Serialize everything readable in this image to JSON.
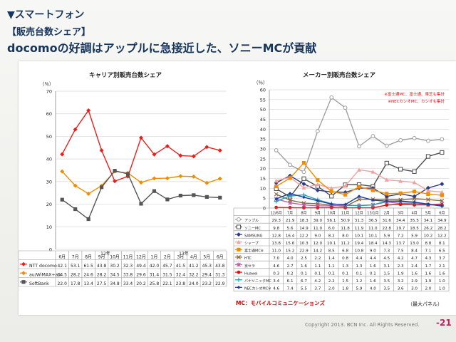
{
  "header": {
    "section": "▼スマートフォン",
    "subtitle": "【販売台数シェア】",
    "headline": "docomoの好調はアップルに急接近した、ソニーMCが貢献"
  },
  "footer": {
    "copyright": "Copyright 2013. BCN Inc. All Rights Reserved.",
    "page": "-21"
  },
  "notes": {
    "mc_prefix": "MC",
    "mc_text": "：モバイルコミュニケーションズ",
    "big_panel": "（最大パネル）"
  },
  "colors": {
    "docomo": "#e8201c",
    "au": "#f08c00",
    "softbank": "#555555",
    "apple": "#a0a0a0",
    "sony": "#4d4d4d",
    "samsung": "#2e3a87",
    "sharp": "#f4a0a0",
    "fujitsu": "#f08c00",
    "htc": "#8c6a3c",
    "kyocera": "#c060a0",
    "huawei": "#e01010",
    "panasonic": "#1fa0b8",
    "nec": "#1f3fa0"
  },
  "chart_data": [
    {
      "type": "line",
      "title": "キャリア別販売台数シェア",
      "ylabel": "（％）",
      "ylim": [
        0,
        70
      ],
      "yticks": [
        0,
        10,
        20,
        30,
        40,
        50,
        60,
        70
      ],
      "categories": [
        "6月",
        "7月",
        "8月",
        "9月",
        "10月",
        "11月",
        "12月",
        "1月",
        "2月",
        "3月",
        "4月",
        "5月",
        "6月"
      ],
      "year_labels": [
        "12年",
        "13年"
      ],
      "grid": true,
      "legend": "table-below",
      "series": [
        {
          "name": "NTT docomo",
          "color_key": "docomo",
          "marker": "diamond",
          "values": [
            42.1,
            53.1,
            61.5,
            43.8,
            30.2,
            32.3,
            49.4,
            42.0,
            45.7,
            41.5,
            41.2,
            45.3,
            43.8
          ],
          "labels": [
            "42.1",
            "53.1",
            "61.5",
            "43.8",
            "30.2",
            "32.3",
            "49.4",
            "42.0",
            "45.7",
            "41.5",
            "41.2",
            "45.3",
            "43.8"
          ]
        },
        {
          "name": "au/WiMAX+au",
          "color_key": "au",
          "marker": "diamond",
          "values": [
            34.5,
            28.2,
            24.6,
            28.2,
            34.5,
            33.8,
            29.6,
            31.4,
            31.5,
            32.4,
            32.2,
            29.4,
            31.3
          ],
          "labels": [
            "34.5",
            "28.2",
            "24.6",
            "28.2",
            "34.5",
            "33.8",
            "29.6",
            "31.4",
            "31.5",
            "32.4",
            "32.2",
            "29.4",
            "31.3"
          ]
        },
        {
          "name": "SoftBank",
          "color_key": "softbank",
          "marker": "square",
          "values": [
            22.0,
            17.8,
            13.4,
            27.5,
            34.8,
            33.4,
            20.2,
            25.8,
            22.1,
            23.8,
            24.0,
            23.2,
            22.9
          ],
          "labels": [
            "22.0",
            "17.8",
            "13.4",
            "27.5",
            "34.8",
            "33.4",
            "20.2",
            "25.8",
            "22.1",
            "23.8",
            "24.0",
            "23.2",
            "22.9"
          ]
        }
      ]
    },
    {
      "type": "line",
      "title": "メーカー別販売台数シェア",
      "ylabel": "（％）",
      "ylim": [
        0,
        60
      ],
      "yticks": [
        0,
        5,
        10,
        15,
        20,
        25,
        30,
        35,
        40,
        45,
        50,
        55,
        60
      ],
      "categories": [
        "12/6月",
        "7月",
        "8月",
        "9月",
        "10月",
        "11月",
        "12月",
        "13/1月",
        "2月",
        "3月",
        "4月",
        "5月",
        "6月"
      ],
      "grid": true,
      "legend": "table-below",
      "annotations": [
        "※富士通MC、富士通、東芝も集計",
        "※NECカシオMC、カシオも集計"
      ],
      "series": [
        {
          "name": "アップル",
          "color_key": "apple",
          "marker": "circle-open",
          "values": [
            29.3,
            21.9,
            18.3,
            39.0,
            56.1,
            50.9,
            31.3,
            36.5,
            31.6,
            34.4,
            35.5,
            34.1,
            34.9
          ],
          "labels": [
            "29.3",
            "21.9",
            "18.3",
            "39.0",
            "56.1",
            "50.9",
            "31.3",
            "36.5",
            "31.6",
            "34.4",
            "35.5",
            "34.1",
            "34.9"
          ]
        },
        {
          "name": "ソニーMC",
          "color_key": "sony",
          "marker": "square-open",
          "values": [
            9.8,
            5.6,
            14.9,
            11.0,
            6.0,
            11.8,
            11.9,
            11.0,
            22.8,
            19.7,
            18.5,
            26.2,
            28.2
          ],
          "labels": [
            "9.8",
            "5.6",
            "14.9",
            "11.0",
            "6.0",
            "11.8",
            "11.9",
            "11.0",
            "22.8",
            "19.7",
            "18.5",
            "26.2",
            "28.2"
          ]
        },
        {
          "name": "SAMSUNG",
          "color_key": "samsung",
          "marker": "diamond",
          "values": [
            12.8,
            16.4,
            12.2,
            9.0,
            8.2,
            8.0,
            10.1,
            10.1,
            5.9,
            7.2,
            5.9,
            10.2,
            12.2
          ],
          "labels": [
            "12.8",
            "16.4",
            "12.2",
            "9.0",
            "8.2",
            "8.0",
            "10.1",
            "10.1",
            "5.9",
            "7.2",
            "5.9",
            "10.2",
            "12.2"
          ]
        },
        {
          "name": "シャープ",
          "color_key": "sharp",
          "marker": "triangle",
          "values": [
            13.8,
            15.6,
            10.3,
            12.0,
            10.1,
            11.2,
            19.4,
            18.4,
            14.3,
            13.7,
            13.0,
            8.8,
            8.1
          ],
          "labels": [
            "13.8",
            "15.6",
            "10.3",
            "12.0",
            "10.1",
            "11.2",
            "19.4",
            "18.4",
            "14.3",
            "13.7",
            "13.0",
            "8.8",
            "8.1"
          ]
        },
        {
          "name": "富士通MC※",
          "color_key": "fujitsu",
          "marker": "square",
          "values": [
            11.0,
            15.2,
            22.9,
            14.2,
            8.5,
            6.8,
            10.8,
            9.0,
            7.3,
            7.5,
            8.4,
            7.1,
            6.5
          ],
          "labels": [
            "11.0",
            "15.2",
            "22.9",
            "14.2",
            "8.5",
            "6.8",
            "10.8",
            "9.0",
            "7.3",
            "7.5",
            "8.4",
            "7.1",
            "6.5"
          ]
        },
        {
          "name": "HTC",
          "color_key": "htc",
          "marker": "x",
          "values": [
            7.0,
            4.0,
            2.5,
            2.2,
            1.4,
            0.8,
            4.4,
            4.4,
            4.5,
            4.2,
            4.7,
            4.3,
            3.7
          ],
          "labels": [
            "7.0",
            "4.0",
            "2.5",
            "2.2",
            "1.4",
            "0.8",
            "4.4",
            "4.4",
            "4.5",
            "4.2",
            "4.7",
            "4.3",
            "3.7"
          ]
        },
        {
          "name": "京セラ",
          "color_key": "kyocera",
          "marker": "star",
          "values": [
            4.6,
            2.7,
            1.6,
            1.1,
            1.1,
            1.3,
            1.3,
            1.6,
            3.1,
            2.3,
            2.4,
            1.7,
            2.1
          ],
          "labels": [
            "4.6",
            "2.7",
            "1.6",
            "1.1",
            "1.1",
            "1.3",
            "1.3",
            "1.6",
            "3.1",
            "2.3",
            "2.4",
            "1.7",
            "2.1"
          ]
        },
        {
          "name": "Huawei",
          "color_key": "huawei",
          "marker": "circle",
          "values": [
            0.3,
            0.2,
            0.1,
            0.1,
            0.2,
            0.1,
            0.1,
            0.1,
            1.5,
            1.9,
            1.6,
            1.6,
            1.6
          ],
          "labels": [
            "0.3",
            "0.2",
            "0.1",
            "0.1",
            "0.2",
            "0.1",
            "0.1",
            "0.1",
            "1.5",
            "1.9",
            "1.6",
            "1.6",
            "1.6"
          ]
        },
        {
          "name": "パナソニックMC",
          "color_key": "panasonic",
          "marker": "plus",
          "values": [
            3.4,
            6.1,
            6.7,
            4.2,
            2.2,
            1.5,
            1.2,
            1.6,
            3.5,
            3.2,
            2.9,
            1.9,
            1.0
          ],
          "labels": [
            "3.4",
            "6.1",
            "6.7",
            "4.2",
            "2.2",
            "1.5",
            "1.2",
            "1.6",
            "3.5",
            "3.2",
            "2.9",
            "1.9",
            "1.0"
          ]
        },
        {
          "name": "NECカシオMC※",
          "color_key": "nec",
          "marker": "diamond-small",
          "values": [
            4.6,
            7.4,
            5.5,
            3.7,
            2.0,
            1.8,
            5.9,
            4.0,
            3.5,
            3.6,
            3.0,
            2.0,
            1.0
          ],
          "labels": [
            "4.6",
            "7.4",
            "5.5",
            "3.7",
            "2.0",
            "1.8",
            "5.9",
            "4.0",
            "3.5",
            "3.6",
            "3.0",
            "2.0",
            "1.0"
          ]
        }
      ]
    }
  ]
}
